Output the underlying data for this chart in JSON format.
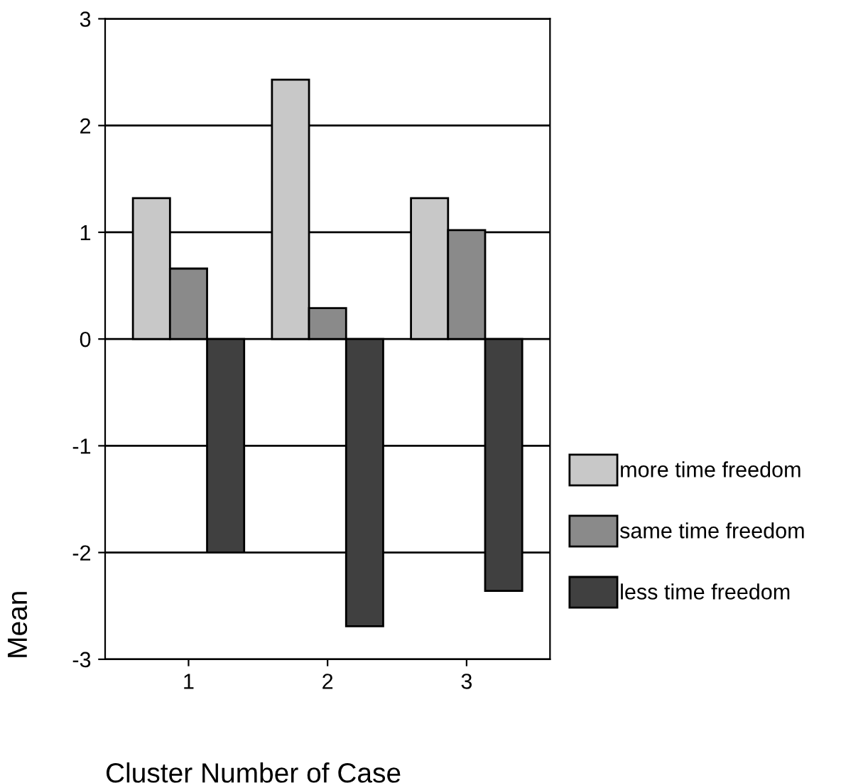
{
  "chart_data": {
    "type": "bar",
    "xlabel": "Cluster Number of Case",
    "ylabel": "Mean",
    "categories": [
      "1",
      "2",
      "3"
    ],
    "series": [
      {
        "name": "more time freedom",
        "color": "#c8c8c8",
        "values": [
          1.32,
          2.43,
          1.32
        ]
      },
      {
        "name": "same time freedom",
        "color": "#8a8a8a",
        "values": [
          0.66,
          0.29,
          1.02
        ]
      },
      {
        "name": "less time freedom",
        "color": "#404040",
        "values": [
          -2.0,
          -2.69,
          -2.36
        ]
      }
    ],
    "ylim": [
      -3,
      3
    ],
    "yticks": [
      -3,
      -2,
      -1,
      0,
      1,
      2,
      3
    ],
    "grid": "y",
    "legend": "right"
  }
}
